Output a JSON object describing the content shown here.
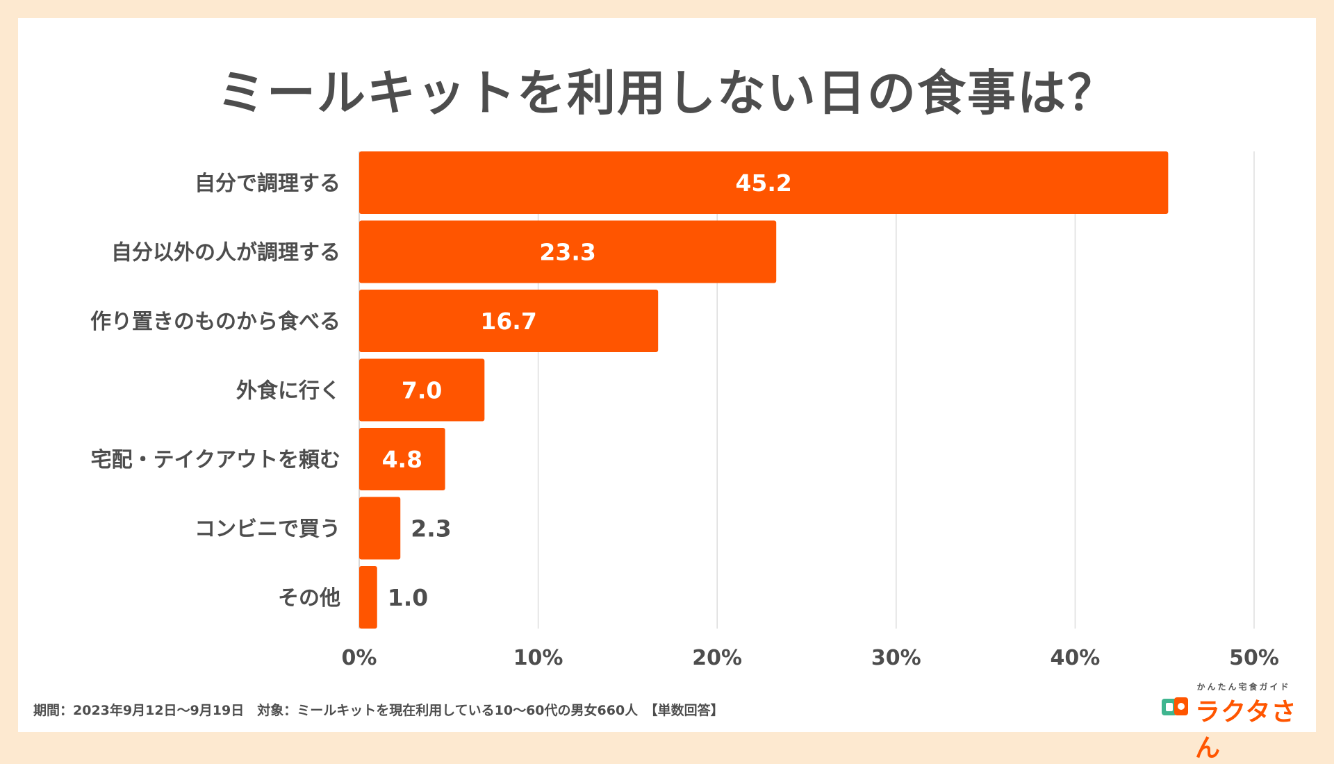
{
  "chart_data": {
    "type": "bar",
    "orientation": "horizontal",
    "title": "ミールキットを利用しない日の食事は？",
    "categories": [
      "自分で調理する",
      "自分以外の人が調理する",
      "作り置きのものから食べる",
      "外食に行く",
      "宅配・テイクアウトを頼む",
      "コンビニで買う",
      "その他"
    ],
    "values": [
      45.2,
      23.3,
      16.7,
      7.0,
      4.8,
      2.3,
      1.0
    ],
    "value_labels": [
      "45.2",
      "23.3",
      "16.7",
      "7.0",
      "4.8",
      "2.3",
      "1.0"
    ],
    "xlim": [
      0,
      50
    ],
    "ticks": [
      0,
      10,
      20,
      30,
      40,
      50
    ],
    "tick_labels": [
      "0%",
      "10%",
      "20%",
      "30%",
      "40%",
      "50%"
    ],
    "xlabel": "",
    "ylabel": "",
    "grid": true,
    "bar_color": "#ff5500"
  },
  "footnote": "期間：2023年9月12日〜9月19日　対象：ミールキットを現在利用している10〜60代の男女660人　【単数回答】",
  "logo": {
    "tagline": "かんたん宅食ガイド",
    "brand": "ラクタさん",
    "icon": "bento-icon"
  },
  "colors": {
    "background": "#fde9d0",
    "text": "#4d4d4d",
    "accent": "#ff5500"
  }
}
